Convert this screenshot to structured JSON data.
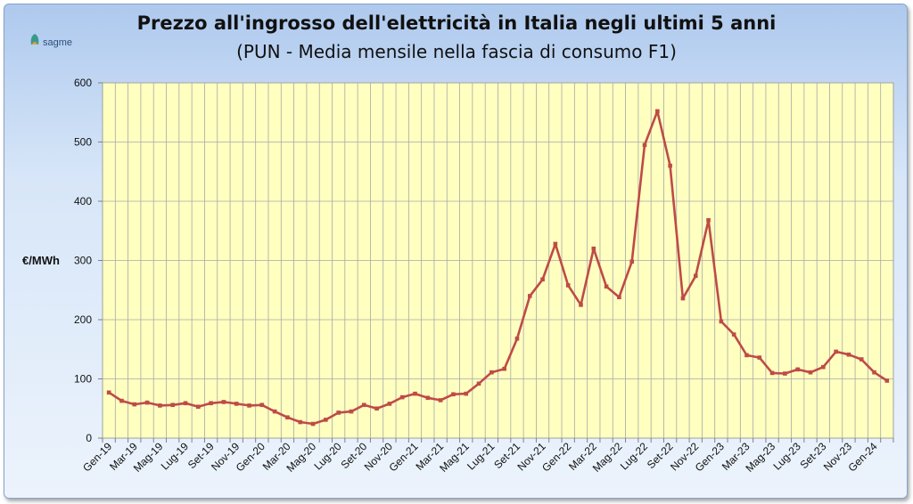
{
  "logo": {
    "text": "sagme"
  },
  "chart_data": {
    "type": "line",
    "title": "Prezzo all'ingrosso dell'elettricità in Italia negli ultimi 5 anni",
    "subtitle": "(PUN - Media mensile nella fascia di consumo F1)",
    "ylabel": "€/MWh",
    "xlabel": "",
    "ylim": [
      0,
      600
    ],
    "yticks": [
      0,
      100,
      200,
      300,
      400,
      500,
      600
    ],
    "grid": true,
    "legend": "none",
    "colors": {
      "line": "#be4b48",
      "plot_bg": "#ffffc0",
      "grid": "#a8a8a8"
    },
    "x_tick_labels": [
      "Gen-19",
      "Mar-19",
      "Mag-19",
      "Lug-19",
      "Set-19",
      "Nov-19",
      "Gen-20",
      "Mar-20",
      "Mag-20",
      "Lug-20",
      "Set-20",
      "Nov-20",
      "Gen-21",
      "Mar-21",
      "Mag-21",
      "Lug-21",
      "Set-21",
      "Nov-21",
      "Gen-22",
      "Mar-22",
      "Mag-22",
      "Lug-22",
      "Set-22",
      "Nov-22",
      "Gen-23",
      "Mar-23",
      "Mag-23",
      "Lug-23",
      "Set-23",
      "Nov-23",
      "Gen-24"
    ],
    "categories": [
      "Gen-19",
      "Feb-19",
      "Mar-19",
      "Apr-19",
      "Mag-19",
      "Giu-19",
      "Lug-19",
      "Ago-19",
      "Set-19",
      "Ott-19",
      "Nov-19",
      "Dic-19",
      "Gen-20",
      "Feb-20",
      "Mar-20",
      "Apr-20",
      "Mag-20",
      "Giu-20",
      "Lug-20",
      "Ago-20",
      "Set-20",
      "Ott-20",
      "Nov-20",
      "Dic-20",
      "Gen-21",
      "Feb-21",
      "Mar-21",
      "Apr-21",
      "Mag-21",
      "Giu-21",
      "Lug-21",
      "Ago-21",
      "Set-21",
      "Ott-21",
      "Nov-21",
      "Dic-21",
      "Gen-22",
      "Feb-22",
      "Mar-22",
      "Apr-22",
      "Mag-22",
      "Giu-22",
      "Lug-22",
      "Ago-22",
      "Set-22",
      "Ott-22",
      "Nov-22",
      "Dic-22",
      "Gen-23",
      "Feb-23",
      "Mar-23",
      "Apr-23",
      "Mag-23",
      "Giu-23",
      "Lug-23",
      "Ago-23",
      "Set-23",
      "Ott-23",
      "Nov-23",
      "Dic-23",
      "Gen-24",
      "Feb-24"
    ],
    "values": [
      77,
      63,
      57,
      60,
      55,
      56,
      59,
      53,
      59,
      61,
      58,
      55,
      56,
      45,
      35,
      27,
      24,
      31,
      43,
      45,
      56,
      50,
      58,
      69,
      75,
      68,
      64,
      74,
      75,
      92,
      111,
      117,
      168,
      240,
      268,
      328,
      258,
      225,
      320,
      256,
      238,
      298,
      495,
      552,
      460,
      236,
      274,
      368,
      197,
      175,
      140,
      136,
      110,
      109,
      116,
      111,
      120,
      146,
      141,
      133,
      111,
      97
    ]
  }
}
